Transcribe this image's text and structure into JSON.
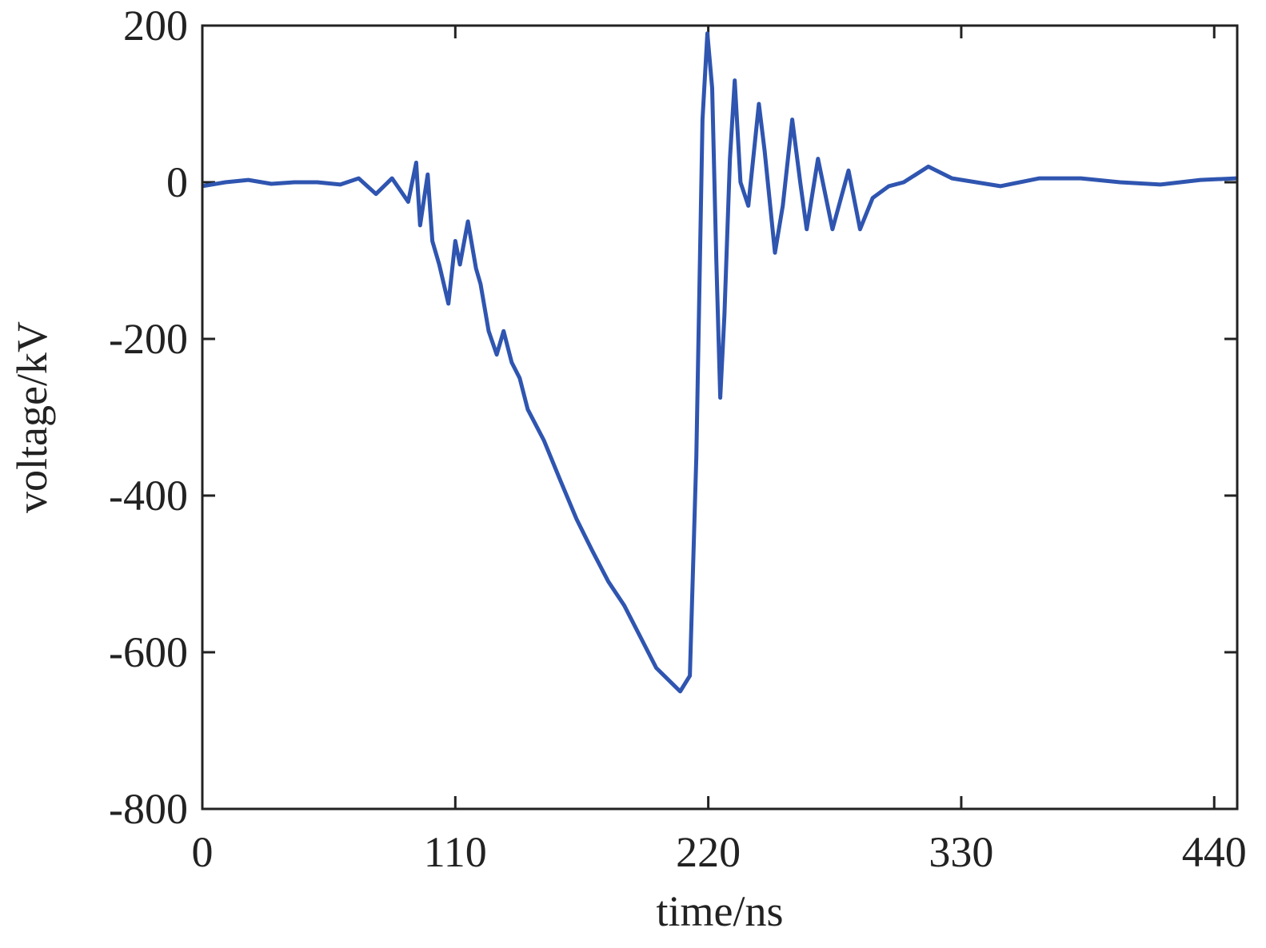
{
  "chart_data": {
    "type": "line",
    "x_label": "time/ns",
    "y_label": "voltage/kV",
    "xlim": [
      0,
      450
    ],
    "ylim": [
      -800,
      200
    ],
    "xticks": [
      0,
      110,
      220,
      330,
      440
    ],
    "yticks": [
      -800,
      -600,
      -400,
      -200,
      0,
      200
    ],
    "series": [
      {
        "color": "#2f55b0",
        "x": [
          0,
          10,
          20,
          30,
          40,
          50,
          60,
          68,
          75.5,
          82.5,
          89.5,
          93,
          94.7,
          98,
          100,
          103,
          107,
          110,
          112,
          115.5,
          119,
          121,
          124.5,
          128,
          131,
          134.5,
          138,
          141.5,
          148.6,
          155.6,
          162.7,
          169.5,
          176.6,
          183.4,
          190.4,
          197.4,
          204.3,
          207.8,
          212,
          214.8,
          217.5,
          219.6,
          221.7,
          223.5,
          225.2,
          227,
          229.4,
          231.5,
          234,
          237.4,
          242,
          244.5,
          249,
          252.4,
          256.5,
          260,
          262.8,
          267.7,
          274,
          281,
          286,
          291.5,
          298.5,
          305,
          315.7,
          326,
          347,
          364,
          382,
          399,
          416.6,
          434,
          449.7
        ],
        "values": [
          -5,
          0,
          3,
          -2,
          0,
          0,
          -3,
          5,
          -15,
          5,
          -25,
          25,
          -55,
          10,
          -75,
          -105,
          -155,
          -75,
          -105,
          -50,
          -110,
          -130,
          -190,
          -220,
          -190,
          -230,
          -250,
          -290,
          -330,
          -380,
          -430,
          -470,
          -510,
          -540,
          -580,
          -620,
          -640,
          -650,
          -630,
          -350,
          80,
          190,
          120,
          -100,
          -275,
          -170,
          30,
          130,
          0,
          -30,
          100,
          40,
          -90,
          -30,
          80,
          0,
          -60,
          30,
          -60,
          15,
          -60,
          -20,
          -5,
          0,
          20,
          5,
          -5,
          5,
          5,
          0,
          -3,
          3,
          5
        ]
      }
    ]
  }
}
